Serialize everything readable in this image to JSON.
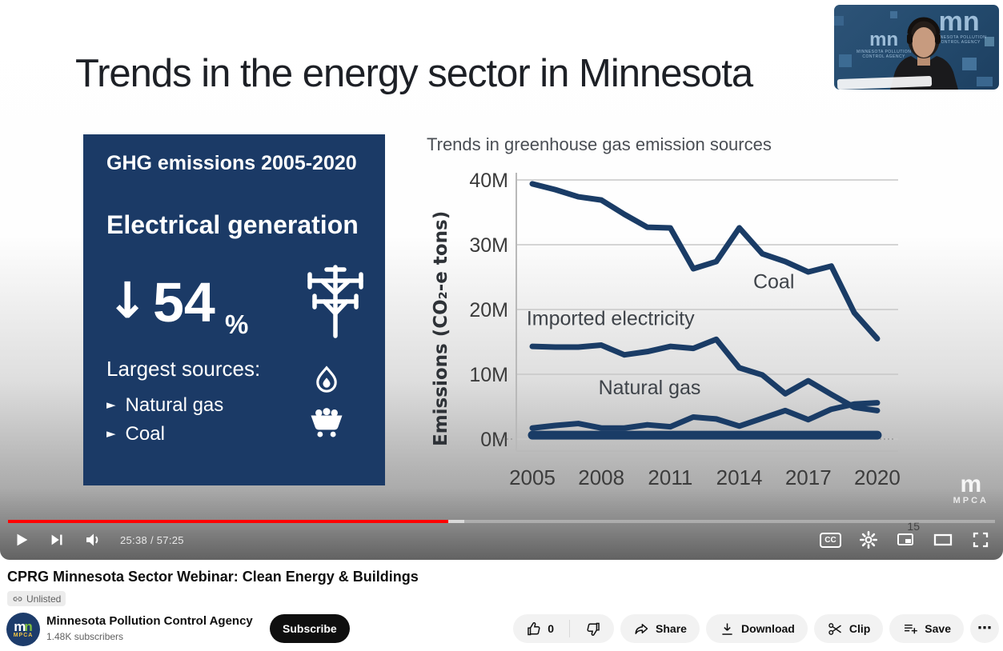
{
  "chart_data": {
    "type": "line",
    "title": "Trends in greenhouse gas emission sources",
    "xlabel": "",
    "ylabel": "Emissions (CO₂-e tons)",
    "x": [
      2005,
      2006,
      2007,
      2008,
      2009,
      2010,
      2011,
      2012,
      2013,
      2014,
      2015,
      2016,
      2017,
      2018,
      2019,
      2020
    ],
    "x_ticks": [
      2005,
      2008,
      2011,
      2014,
      2017,
      2020
    ],
    "y_ticks": [
      {
        "value": 0,
        "label": "0M"
      },
      {
        "value": 10,
        "label": "10M"
      },
      {
        "value": 20,
        "label": "20M"
      },
      {
        "value": 30,
        "label": "30M"
      },
      {
        "value": 40,
        "label": "40M"
      }
    ],
    "ylim": [
      0,
      41
    ],
    "grid": true,
    "legend_position": "none",
    "line_color": "#1a3c66",
    "units": "million CO2-e tons",
    "series": [
      {
        "name": "Coal",
        "values": [
          39.4,
          38.5,
          37.4,
          36.9,
          34.7,
          32.7,
          32.6,
          26.3,
          27.4,
          32.6,
          28.6,
          27.4,
          25.8,
          26.7,
          19.5,
          15.5
        ]
      },
      {
        "name": "Imported electricity",
        "values": [
          14.3,
          14.2,
          14.2,
          14.5,
          13.0,
          13.5,
          14.3,
          14.0,
          15.4,
          11.0,
          9.9,
          7.0,
          9.0,
          6.9,
          4.9,
          4.4
        ]
      },
      {
        "name": "Natural gas",
        "values": [
          1.7,
          2.1,
          2.4,
          1.7,
          1.7,
          2.2,
          1.9,
          3.4,
          3.1,
          2.0,
          3.2,
          4.4,
          3.0,
          4.6,
          5.4,
          5.6
        ]
      },
      {
        "name": "unlabeled-baseline",
        "values": [
          0.6,
          0.6,
          0.6,
          0.6,
          0.6,
          0.6,
          0.6,
          0.6,
          0.6,
          0.6,
          0.6,
          0.6,
          0.6,
          0.6,
          0.6,
          0.6
        ],
        "thick": true
      }
    ],
    "annotations": [
      {
        "text": "Coal",
        "year": 2015.5,
        "value": 23.3,
        "anchor": "middle"
      },
      {
        "text": "Imported electricity",
        "year": 2004.75,
        "value": 17.6,
        "anchor": "start"
      },
      {
        "text": "Natural gas",
        "year": 2010.1,
        "value": 6.9,
        "anchor": "middle"
      }
    ]
  },
  "video": {
    "slide": {
      "title": "Trends in the energy sector in Minnesota",
      "panel": {
        "heading": "GHG emissions 2005-2020",
        "title": "Electrical generation",
        "arrow": "↓",
        "stat_value": "54",
        "stat_unit": "%",
        "sources_label": "Largest sources:",
        "bullet": "►",
        "sources": [
          "Natural gas",
          "Coal"
        ],
        "bg_color": "#1b3a66"
      },
      "slide_number": "15",
      "watermark": {
        "logo": "m",
        "label": "MPCA"
      }
    },
    "webcam": {
      "logo_m": "m",
      "logo_n": "n",
      "logo_caption_line1": "MINNESOTA POLLUTION",
      "logo_caption_line2": "CONTROL AGENCY"
    },
    "player": {
      "time_display": "25:38 / 57:25",
      "progress_percent": 44.6,
      "buffer_percent": 46.2,
      "progress_color": "#ff0000",
      "captions_label": "CC"
    }
  },
  "page": {
    "title": "CPRG Minnesota Sector Webinar: Clean Energy & Buildings",
    "visibility_badge": "Unlisted",
    "channel": {
      "name": "Minnesota Pollution Control Agency",
      "subscribers": "1.48K subscribers",
      "avatar_m": "m",
      "avatar_n": "n",
      "avatar_label": "MPCA"
    },
    "subscribe_label": "Subscribe",
    "actions": {
      "like_count": "0",
      "share_label": "Share",
      "download_label": "Download",
      "clip_label": "Clip",
      "save_label": "Save",
      "more_glyph": "⋯"
    }
  },
  "icons": {
    "play": "▶",
    "bullet": "►",
    "down_arrow": "↓",
    "more": "⋯"
  }
}
